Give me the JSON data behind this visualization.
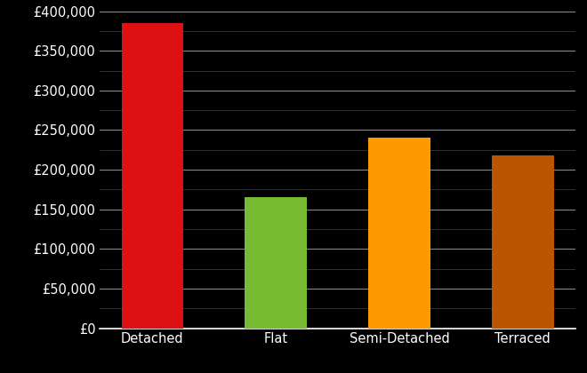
{
  "categories": [
    "Detached",
    "Flat",
    "Semi-Detached",
    "Terraced"
  ],
  "values": [
    385000,
    165000,
    240000,
    218000
  ],
  "bar_colors": [
    "#dd1111",
    "#77bb33",
    "#ff9900",
    "#bb5500"
  ],
  "background_color": "#000000",
  "text_color": "#ffffff",
  "major_grid_color": "#888888",
  "minor_grid_color": "#444444",
  "ylim": [
    0,
    400000
  ],
  "yticks_major": [
    0,
    50000,
    100000,
    150000,
    200000,
    250000,
    300000,
    350000,
    400000
  ],
  "tick_fontsize": 10.5,
  "label_fontsize": 10.5,
  "bar_width": 0.5
}
